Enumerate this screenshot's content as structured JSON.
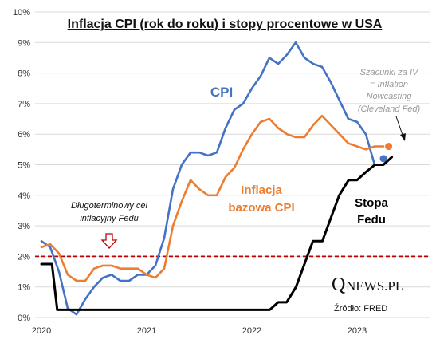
{
  "chart_data": {
    "type": "line",
    "title": "Inflacja CPI (rok do roku) i stopy procentowe w USA",
    "y_ticks": [
      "0%",
      "1%",
      "2%",
      "3%",
      "4%",
      "5%",
      "6%",
      "7%",
      "8%",
      "9%",
      "10%"
    ],
    "x_ticks": [
      "2020",
      "2021",
      "2022",
      "2023"
    ],
    "ylim": [
      0,
      10
    ],
    "xlim": [
      2020.0,
      2023.5
    ],
    "grid": true,
    "target_line": {
      "value": 2.0,
      "color": "#c00000"
    },
    "series": [
      {
        "key": "cpi",
        "name": "CPI",
        "color": "#4472c4",
        "x": [
          2020.0,
          2020.0833,
          2020.1667,
          2020.25,
          2020.3333,
          2020.4167,
          2020.5,
          2020.5833,
          2020.6667,
          2020.75,
          2020.8333,
          2020.9167,
          2021.0,
          2021.0833,
          2021.1667,
          2021.25,
          2021.3333,
          2021.4167,
          2021.5,
          2021.5833,
          2021.6667,
          2021.75,
          2021.8333,
          2021.9167,
          2022.0,
          2022.0833,
          2022.1667,
          2022.25,
          2022.3333,
          2022.4167,
          2022.5,
          2022.5833,
          2022.6667,
          2022.75,
          2022.8333,
          2022.9167,
          2023.0,
          2023.0833,
          2023.1667
        ],
        "values": [
          2.5,
          2.3,
          1.5,
          0.3,
          0.1,
          0.6,
          1.0,
          1.3,
          1.4,
          1.2,
          1.2,
          1.4,
          1.4,
          1.7,
          2.6,
          4.2,
          5.0,
          5.4,
          5.4,
          5.3,
          5.4,
          6.2,
          6.8,
          7.0,
          7.5,
          7.9,
          8.5,
          8.3,
          8.6,
          9.0,
          8.5,
          8.3,
          8.2,
          7.7,
          7.1,
          6.5,
          6.4,
          6.0,
          5.0
        ]
      },
      {
        "key": "core",
        "name": "Inflacja bazowa CPI",
        "color": "#ed7d31",
        "x": [
          2020.0,
          2020.0833,
          2020.1667,
          2020.25,
          2020.3333,
          2020.4167,
          2020.5,
          2020.5833,
          2020.6667,
          2020.75,
          2020.8333,
          2020.9167,
          2021.0,
          2021.0833,
          2021.1667,
          2021.25,
          2021.3333,
          2021.4167,
          2021.5,
          2021.5833,
          2021.6667,
          2021.75,
          2021.8333,
          2021.9167,
          2022.0,
          2022.0833,
          2022.1667,
          2022.25,
          2022.3333,
          2022.4167,
          2022.5,
          2022.5833,
          2022.6667,
          2022.75,
          2022.8333,
          2022.9167,
          2023.0,
          2023.0833,
          2023.1667,
          2023.25
        ],
        "values": [
          2.3,
          2.4,
          2.1,
          1.4,
          1.2,
          1.2,
          1.6,
          1.7,
          1.7,
          1.6,
          1.6,
          1.6,
          1.4,
          1.3,
          1.6,
          3.0,
          3.8,
          4.5,
          4.2,
          4.0,
          4.0,
          4.6,
          4.9,
          5.5,
          6.0,
          6.4,
          6.5,
          6.2,
          6.0,
          5.9,
          5.9,
          6.3,
          6.6,
          6.3,
          6.0,
          5.7,
          5.6,
          5.5,
          5.6,
          5.6
        ]
      },
      {
        "key": "fed",
        "name": "Stopa Fedu",
        "color": "#000000",
        "x": [
          2020.0,
          2020.1,
          2020.15,
          2020.5,
          2021.0,
          2021.5,
          2022.0,
          2022.17,
          2022.25,
          2022.33,
          2022.42,
          2022.5,
          2022.58,
          2022.67,
          2022.75,
          2022.83,
          2022.92,
          2023.0,
          2023.08,
          2023.17,
          2023.25,
          2023.33
        ],
        "values": [
          1.75,
          1.75,
          0.25,
          0.25,
          0.25,
          0.25,
          0.25,
          0.25,
          0.5,
          0.5,
          1.0,
          1.75,
          2.5,
          2.5,
          3.25,
          4.0,
          4.5,
          4.5,
          4.75,
          5.0,
          5.0,
          5.25
        ]
      }
    ],
    "estimates": {
      "cpi": {
        "x": 2023.25,
        "value": 5.2,
        "color": "#4472c4"
      },
      "core": {
        "x": 2023.3,
        "value": 5.6,
        "color": "#ed7d31"
      },
      "note_lines": [
        "Szacunki za IV",
        "= Inflation",
        "Nowcasting",
        "(Cleveland Fed)"
      ]
    },
    "labels": {
      "cpi": "CPI",
      "core_line1": "Inflacja",
      "core_line2": "bazowa CPI",
      "fed_line1": "Stopa",
      "fed_line2": "Fedu",
      "target_line1": "Długoterminowy cel",
      "target_line2": "inflacyjny Fedu"
    },
    "source": "Źródło: FRED",
    "brand": {
      "q": "Q",
      "rest": "NEWS.PL"
    }
  }
}
